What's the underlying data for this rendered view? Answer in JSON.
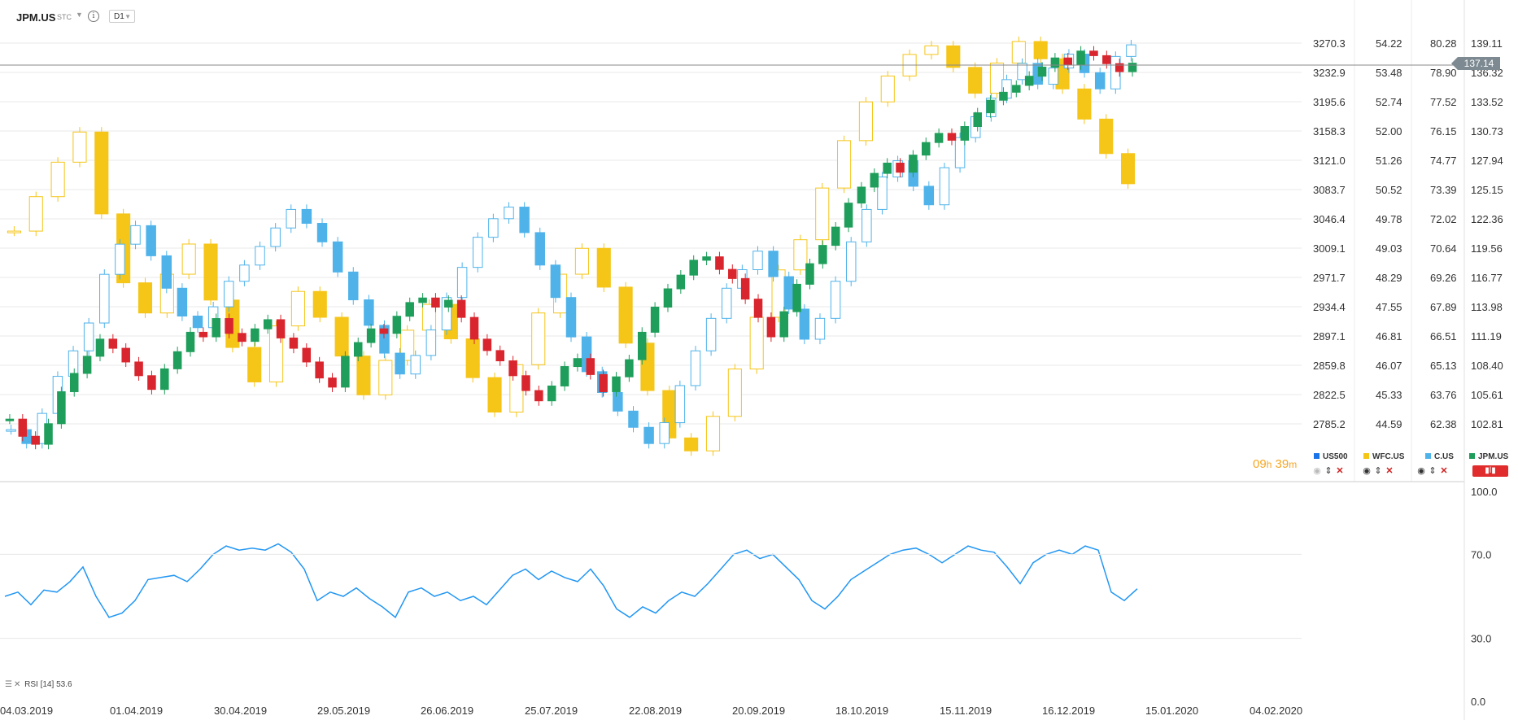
{
  "toolbar": {
    "symbol": "JPM.US",
    "chart_type": "STC",
    "interval": "D1"
  },
  "price_axes": {
    "us500": [
      "3270.3",
      "3232.9",
      "3195.6",
      "3158.3",
      "3121.0",
      "3083.7",
      "3046.4",
      "3009.1",
      "2971.7",
      "2934.4",
      "2897.1",
      "2859.8",
      "2822.5",
      "2785.2"
    ],
    "wfc": [
      "54.22",
      "53.48",
      "52.74",
      "52.00",
      "51.26",
      "50.52",
      "49.78",
      "49.03",
      "48.29",
      "47.55",
      "46.81",
      "46.07",
      "45.33",
      "44.59"
    ],
    "c": [
      "80.28",
      "78.90",
      "77.52",
      "76.15",
      "74.77",
      "73.39",
      "72.02",
      "70.64",
      "69.26",
      "67.89",
      "66.51",
      "65.13",
      "63.76",
      "62.38"
    ],
    "jpm": [
      "139.11",
      "136.32",
      "133.52",
      "130.73",
      "127.94",
      "125.15",
      "122.36",
      "119.56",
      "116.77",
      "113.98",
      "111.19",
      "108.40",
      "105.61",
      "102.81"
    ]
  },
  "current_price": "137.14",
  "countdown": {
    "hours": "09",
    "h_unit": "h",
    "minutes": "39",
    "m_unit": "m"
  },
  "legend": [
    {
      "label": "US500",
      "color": "#1a73e8"
    },
    {
      "label": "WFC.US",
      "color": "#f5c518"
    },
    {
      "label": "C.US",
      "color": "#4fb3ea"
    },
    {
      "label": "JPM.US",
      "color": "#1e9e5a"
    }
  ],
  "rsi": {
    "label": "RSI [14]",
    "value": "53.6",
    "levels": [
      "100.0",
      "70.0",
      "30.0",
      "0.0"
    ]
  },
  "dates": [
    "04.03.2019",
    "01.04.2019",
    "30.04.2019",
    "29.05.2019",
    "26.06.2019",
    "25.07.2019",
    "22.08.2019",
    "20.09.2019",
    "18.10.2019",
    "15.11.2019",
    "16.12.2019",
    "15.01.2020",
    "04.02.2020"
  ],
  "colors": {
    "jpm_up": "#1e9e5a",
    "jpm_down": "#d9262e",
    "wfc": "#f5c518",
    "c": "#4fb3ea",
    "rsi_line": "#2196f3",
    "grid": "#e8e8e8"
  },
  "chart_data": [
    {
      "type": "candlestick",
      "series": [
        {
          "name": "JPM.US",
          "close_approx": [
            106.0,
            104.5,
            103.8,
            105.6,
            108.4,
            110.0,
            111.5,
            113.0,
            112.2,
            111.0,
            109.8,
            108.6,
            110.4,
            111.9,
            113.6,
            113.2,
            114.8,
            113.5,
            112.8,
            113.9,
            114.7,
            113.1,
            112.2,
            111.0,
            109.6,
            108.8,
            111.5,
            112.7,
            113.9,
            113.5,
            115.0,
            116.2,
            116.6,
            115.8,
            116.4,
            114.9,
            113.0,
            112.0,
            111.1,
            109.8,
            108.5,
            107.6,
            108.9,
            110.6,
            111.3,
            109.9,
            108.4,
            109.7,
            111.2,
            113.6,
            115.8,
            117.4,
            118.6,
            119.9,
            120.2,
            119.1,
            118.3,
            116.5,
            114.9,
            113.2,
            115.4,
            117.8,
            119.6,
            121.2,
            122.8,
            124.9,
            126.3,
            127.5,
            128.4,
            127.6,
            129.1,
            130.2,
            131.0,
            130.4,
            131.6,
            132.8,
            133.9,
            134.6,
            135.2,
            136.0,
            136.8,
            137.6,
            137.0,
            138.2,
            137.8,
            137.1,
            136.4,
            137.14
          ]
        },
        {
          "name": "C.US",
          "close_approx": [
            63.5,
            62.9,
            64.2,
            65.8,
            66.9,
            68.1,
            70.2,
            71.5,
            72.3,
            71.0,
            69.6,
            68.4,
            67.9,
            68.8,
            69.9,
            70.6,
            71.4,
            72.2,
            73.0,
            72.4,
            71.6,
            70.3,
            69.1,
            68.0,
            66.8,
            65.9,
            66.7,
            67.8,
            69.2,
            70.5,
            71.8,
            72.6,
            73.1,
            72.0,
            70.6,
            69.2,
            67.5,
            66.0,
            65.1,
            64.3,
            63.6,
            62.9,
            63.8,
            65.4,
            66.9,
            68.3,
            69.6,
            70.4,
            71.2,
            70.1,
            68.7,
            67.4,
            68.3,
            69.9,
            71.6,
            73.0,
            74.4,
            75.1,
            74.0,
            73.2,
            74.8,
            76.1,
            77.0,
            77.8,
            78.6,
            79.3,
            78.4,
            79.1,
            79.7,
            78.9,
            78.2,
            79.6,
            80.1
          ]
        },
        {
          "name": "WFC.US",
          "close_approx": [
            49.8,
            50.6,
            51.4,
            52.1,
            50.2,
            48.6,
            47.9,
            48.8,
            49.5,
            48.2,
            47.1,
            46.3,
            47.6,
            48.4,
            47.8,
            46.9,
            46.0,
            46.8,
            47.5,
            48.1,
            47.3,
            46.4,
            45.6,
            46.7,
            47.9,
            48.8,
            49.4,
            48.5,
            47.2,
            46.1,
            45.0,
            44.7,
            45.5,
            46.6,
            47.8,
            48.9,
            49.6,
            50.8,
            51.9,
            52.8,
            53.4,
            53.9,
            54.1,
            53.6,
            53.0,
            53.7,
            54.2,
            53.8,
            53.1,
            52.4,
            51.6,
            50.9
          ]
        }
      ],
      "ylabel": "",
      "xlabel": ""
    },
    {
      "type": "line",
      "series": [
        {
          "name": "RSI [14]",
          "values": [
            50,
            52,
            46,
            53,
            52,
            57,
            64,
            50,
            40,
            42,
            48,
            58,
            59,
            60,
            57,
            63,
            70,
            74,
            72,
            73,
            72,
            75,
            71,
            63,
            48,
            52,
            50,
            54,
            49,
            45,
            40,
            52,
            54,
            50,
            52,
            48,
            50,
            46,
            53,
            60,
            63,
            58,
            62,
            59,
            57,
            63,
            55,
            44,
            40,
            45,
            42,
            48,
            52,
            50,
            56,
            63,
            70,
            72,
            68,
            70,
            64,
            58,
            48,
            44,
            50,
            58,
            62,
            66,
            70,
            72,
            73,
            70,
            66,
            70,
            74,
            72,
            71,
            64,
            56,
            66,
            70,
            72,
            70,
            74,
            72,
            52,
            48,
            53.6
          ]
        }
      ],
      "ylim": [
        0,
        100
      ],
      "ylabel": "",
      "xlabel": ""
    }
  ]
}
